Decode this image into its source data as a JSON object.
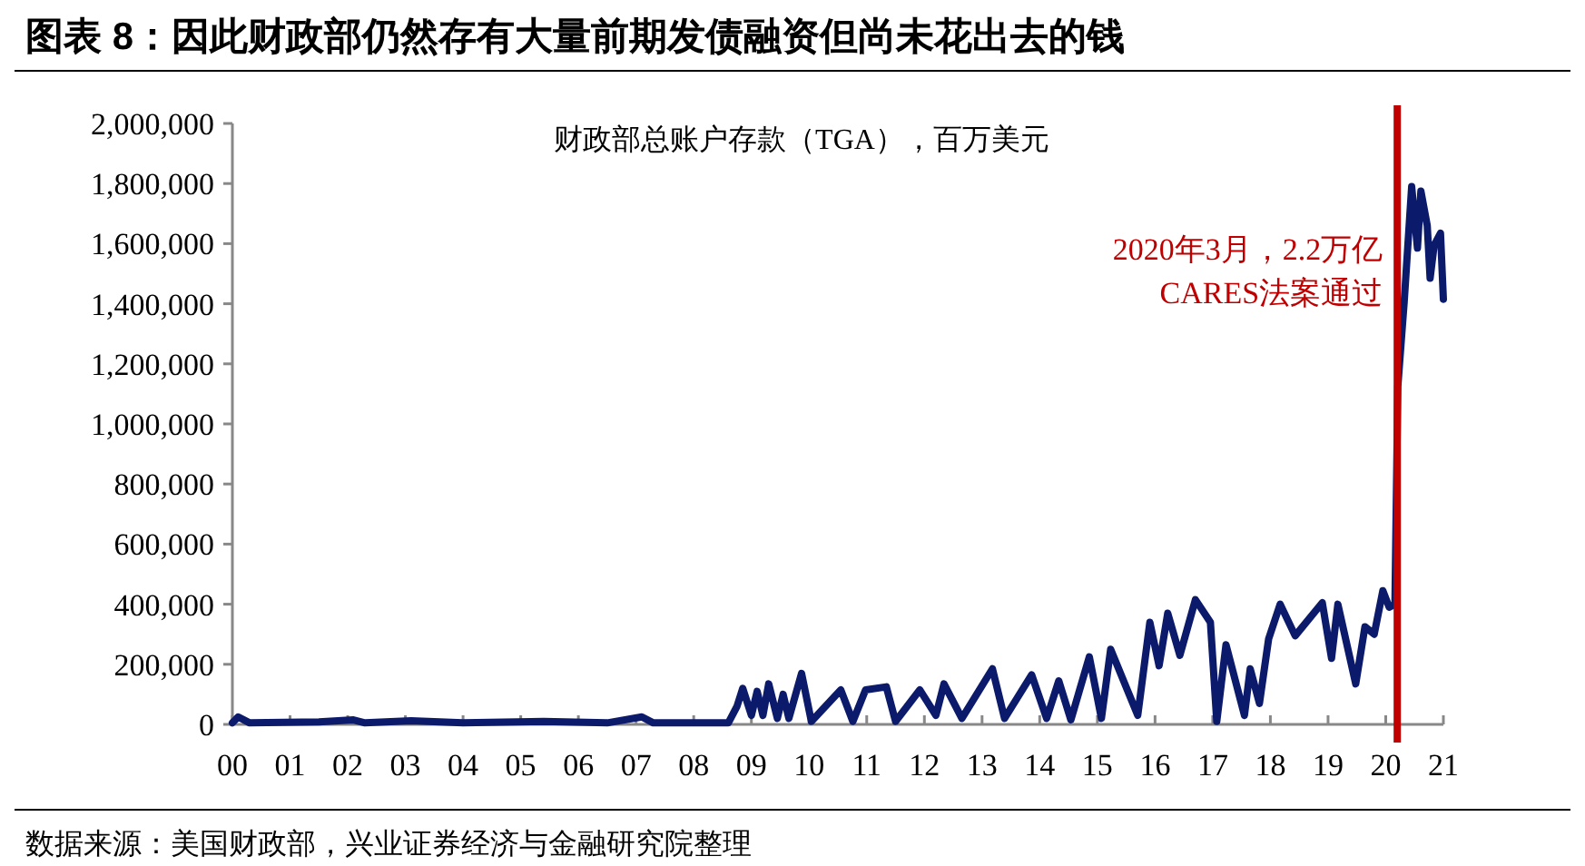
{
  "chart_data": {
    "type": "line",
    "title": "图表 8：因此财政部仍然存有大量前期发债融资但尚未花出去的钱",
    "subtitle": "财政部总账户存款（TGA），百万美元",
    "annotations": [
      "数据来源：美国财政部，兴业证券经济与金融研究院整理"
    ],
    "xlim": [
      2000,
      2021
    ],
    "xticks": [
      {
        "value": 2000,
        "label": "00"
      },
      {
        "value": 2001,
        "label": "01"
      },
      {
        "value": 2002,
        "label": "02"
      },
      {
        "value": 2003,
        "label": "03"
      },
      {
        "value": 2004,
        "label": "04"
      },
      {
        "value": 2005,
        "label": "05"
      },
      {
        "value": 2006,
        "label": "06"
      },
      {
        "value": 2007,
        "label": "07"
      },
      {
        "value": 2008,
        "label": "08"
      },
      {
        "value": 2009,
        "label": "09"
      },
      {
        "value": 2010,
        "label": "10"
      },
      {
        "value": 2011,
        "label": "11"
      },
      {
        "value": 2012,
        "label": "12"
      },
      {
        "value": 2013,
        "label": "13"
      },
      {
        "value": 2014,
        "label": "14"
      },
      {
        "value": 2015,
        "label": "15"
      },
      {
        "value": 2016,
        "label": "16"
      },
      {
        "value": 2017,
        "label": "17"
      },
      {
        "value": 2018,
        "label": "18"
      },
      {
        "value": 2019,
        "label": "19"
      },
      {
        "value": 2020,
        "label": "20"
      },
      {
        "value": 2021,
        "label": "21"
      }
    ],
    "ylim": [
      0,
      2000000
    ],
    "yticks": [
      0,
      {
        "value": 200000,
        "label": "200,000"
      },
      {
        "value": 400000,
        "label": "400,000"
      },
      {
        "value": 600000,
        "label": "600,000"
      },
      {
        "value": 800000,
        "label": "800,000"
      },
      {
        "value": 1000000,
        "label": "1,000,000"
      },
      {
        "value": 1200000,
        "label": "1,200,000"
      },
      {
        "value": 1400000,
        "label": "1,400,000"
      },
      {
        "value": 1600000,
        "label": "1,600,000"
      },
      {
        "value": 1800000,
        "label": "1,800,000"
      },
      {
        "value": 2000000,
        "label": "2,000,000"
      }
    ],
    "grid": false,
    "line_style": "solid",
    "marker": "none",
    "ref_lines": [
      {
        "axis": "x",
        "value": 2020.2,
        "label": "2020年3月，2.2万亿CARES法案通过",
        "color": "#c00000"
      }
    ],
    "series": [
      {
        "color": "#0c1a6b",
        "x": [
          2000,
          2000.1,
          2000.3,
          2001.5,
          2002.1,
          2002.3,
          2003.1,
          2004,
          2005.4,
          2006.5,
          2007.1,
          2007.3,
          2008.6,
          2008.75,
          2008.85,
          2009.0,
          2009.1,
          2009.2,
          2009.3,
          2009.45,
          2009.55,
          2009.65,
          2009.87,
          2010.04,
          2010.55,
          2010.76,
          2010.98,
          2011.34,
          2011.5,
          2011.92,
          2012.2,
          2012.34,
          2012.65,
          2013.18,
          2013.39,
          2013.86,
          2014.12,
          2014.33,
          2014.54,
          2014.86,
          2015.07,
          2015.23,
          2015.7,
          2015.91,
          2016.07,
          2016.22,
          2016.43,
          2016.7,
          2016.96,
          2017.07,
          2017.23,
          2017.55,
          2017.65,
          2017.81,
          2017.97,
          2018.17,
          2018.43,
          2018.9,
          2019.06,
          2019.17,
          2019.48,
          2019.64,
          2019.8,
          2019.95,
          2020.06,
          2020.16,
          2020.21,
          2020.32,
          2020.45,
          2020.55,
          2020.61,
          2020.72,
          2020.77,
          2020.84,
          2020.95,
          2021.0
        ],
        "values": [
          5000,
          25000,
          5000,
          8000,
          15000,
          5000,
          12000,
          5000,
          10000,
          5000,
          25000,
          5000,
          5000,
          60000,
          120000,
          30000,
          110000,
          30000,
          135000,
          20000,
          100000,
          20000,
          170000,
          10000,
          115000,
          10000,
          115000,
          125000,
          10000,
          115000,
          30000,
          135000,
          20000,
          185000,
          20000,
          165000,
          20000,
          145000,
          15000,
          225000,
          20000,
          250000,
          30000,
          340000,
          195000,
          370000,
          230000,
          415000,
          340000,
          10000,
          265000,
          30000,
          185000,
          70000,
          285000,
          400000,
          295000,
          405000,
          220000,
          400000,
          135000,
          325000,
          300000,
          445000,
          390000,
          400000,
          1125000,
          1405000,
          1790000,
          1585000,
          1775000,
          1660000,
          1485000,
          1595000,
          1635000,
          1415000
        ]
      }
    ]
  }
}
